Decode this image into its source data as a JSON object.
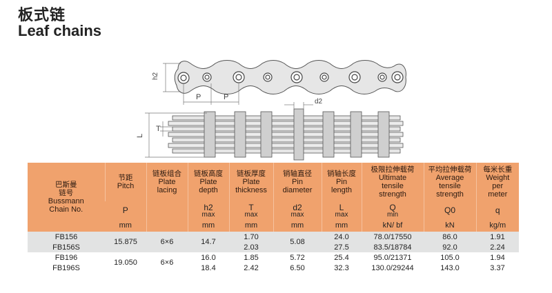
{
  "title": {
    "cn": "板式链",
    "en": "Leaf chains"
  },
  "diagram_labels": {
    "h2": "h2",
    "p1": "P",
    "p2": "P",
    "d2": "d2",
    "L": "L",
    "T": "T"
  },
  "table": {
    "headers": [
      {
        "cn": "巴斯曼\n链号",
        "en": "Bussmann\nChain No."
      },
      {
        "cn": "节距",
        "en": "Pitch"
      },
      {
        "cn": "链板组合",
        "en": "Plate\nlacing"
      },
      {
        "cn": "链板高度",
        "en": "Plate\ndepth"
      },
      {
        "cn": "链板厚度",
        "en": "Plate\nthickness"
      },
      {
        "cn": "销轴直径",
        "en": "Pin\ndiameter"
      },
      {
        "cn": "销轴长度",
        "en": "Pin\nlength"
      },
      {
        "cn": "极限拉伸载荷",
        "en": "Ultimate\ntensile\nstrength"
      },
      {
        "cn": "平均拉伸载荷",
        "en": "Average\ntensile\nstrength"
      },
      {
        "cn": "每米长重",
        "en": "Weight\nper\nmeter"
      }
    ],
    "symbols": [
      {
        "main": "",
        "sub": ""
      },
      {
        "main": "P",
        "sub": ""
      },
      {
        "main": "",
        "sub": ""
      },
      {
        "main": "h2",
        "sub": "max"
      },
      {
        "main": "T",
        "sub": "max"
      },
      {
        "main": "d2",
        "sub": "max"
      },
      {
        "main": "L",
        "sub": "max"
      },
      {
        "main": "Q",
        "sub": "min"
      },
      {
        "main": "Q0",
        "sub": ""
      },
      {
        "main": "q",
        "sub": ""
      }
    ],
    "units": [
      "",
      "mm",
      "",
      "mm",
      "mm",
      "mm",
      "mm",
      "kN/ bf",
      "kN",
      "kg/m"
    ],
    "rows": [
      {
        "chain_no": "FB156",
        "pitch": "15.875",
        "lacing": "6×6",
        "depth": "14.7",
        "thickness": "1.70",
        "pin_dia": "5.08",
        "pin_len": "24.0",
        "ultimate": "78.0/17550",
        "average": "86.0",
        "weight": "1.91"
      },
      {
        "chain_no": "FB156S",
        "pitch": "",
        "lacing": "",
        "depth": "",
        "thickness": "2.03",
        "pin_dia": "",
        "pin_len": "27.5",
        "ultimate": "83.5/18784",
        "average": "92.0",
        "weight": "2.24"
      },
      {
        "chain_no": "FB196",
        "pitch": "19.050",
        "lacing": "6×6",
        "depth": "16.0",
        "thickness": "1.85",
        "pin_dia": "5.72",
        "pin_len": "25.4",
        "ultimate": "95.0/21371",
        "average": "105.0",
        "weight": "1.94"
      },
      {
        "chain_no": "FB196S",
        "pitch": "",
        "lacing": "",
        "depth": "18.4",
        "thickness": "2.42",
        "pin_dia": "6.50",
        "pin_len": "32.3",
        "ultimate": "130.0/29244",
        "average": "143.0",
        "weight": "3.37"
      }
    ]
  }
}
